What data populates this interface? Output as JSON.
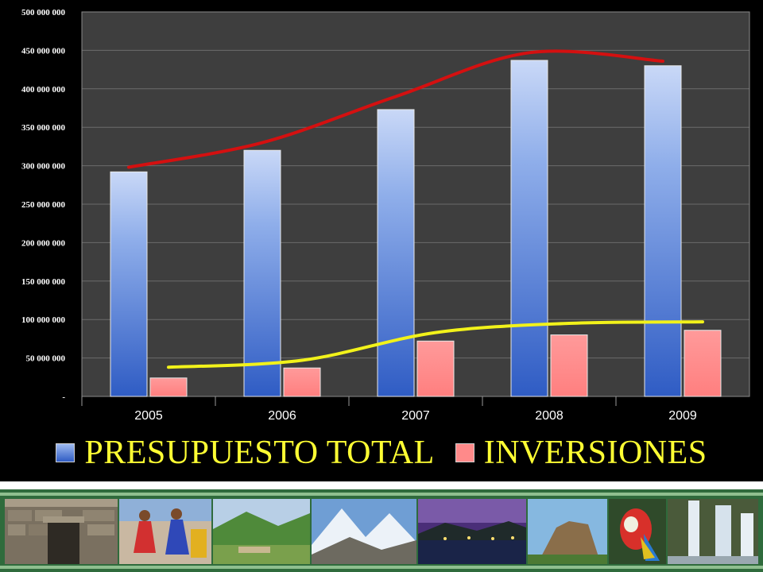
{
  "chart_data": {
    "type": "bar",
    "categories": [
      "2005",
      "2006",
      "2007",
      "2008",
      "2009"
    ],
    "series": [
      {
        "name": "PRESUPUESTO TOTAL",
        "values": [
          292000000,
          320000000,
          373000000,
          437000000,
          430000000
        ],
        "color": "#4a78d6"
      },
      {
        "name": "INVERSIONES",
        "values": [
          24000000,
          37000000,
          72000000,
          80000000,
          86000000
        ],
        "color": "#ff8a8a"
      }
    ],
    "trendlines": [
      {
        "series": "PRESUPUESTO TOTAL",
        "color": "#d41010",
        "values": [
          298000000,
          330000000,
          390000000,
          447000000,
          436000000
        ]
      },
      {
        "series": "INVERSIONES",
        "color": "#f2f21a",
        "values": [
          38000000,
          47000000,
          83000000,
          95000000,
          97000000
        ]
      }
    ],
    "yticks": [
      "-",
      "50 000 000",
      "100 000 000",
      "150 000 000",
      "200 000 000",
      "250 000 000",
      "300 000 000",
      "350 000 000",
      "400 000 000",
      "450 000 000",
      "500 000 000"
    ],
    "ylim": [
      0,
      500000000
    ],
    "grid": true,
    "legend_position": "bottom",
    "colors": {
      "plot_bg": "#3e3e3e",
      "figure_bg": "#000000",
      "tick_text": "#ffffff",
      "category_text": "#ffffff",
      "legend_text": "#ffff33",
      "gridline": "#6b6b6b"
    }
  },
  "photo_strip": [
    "stone-ruins-photo",
    "festival-dancers-photo",
    "green-valley-photo",
    "snow-mountains-photo",
    "night-lake-photo",
    "rock-hill-photo",
    "macaw-parrot-photo",
    "waterfall-photo"
  ]
}
